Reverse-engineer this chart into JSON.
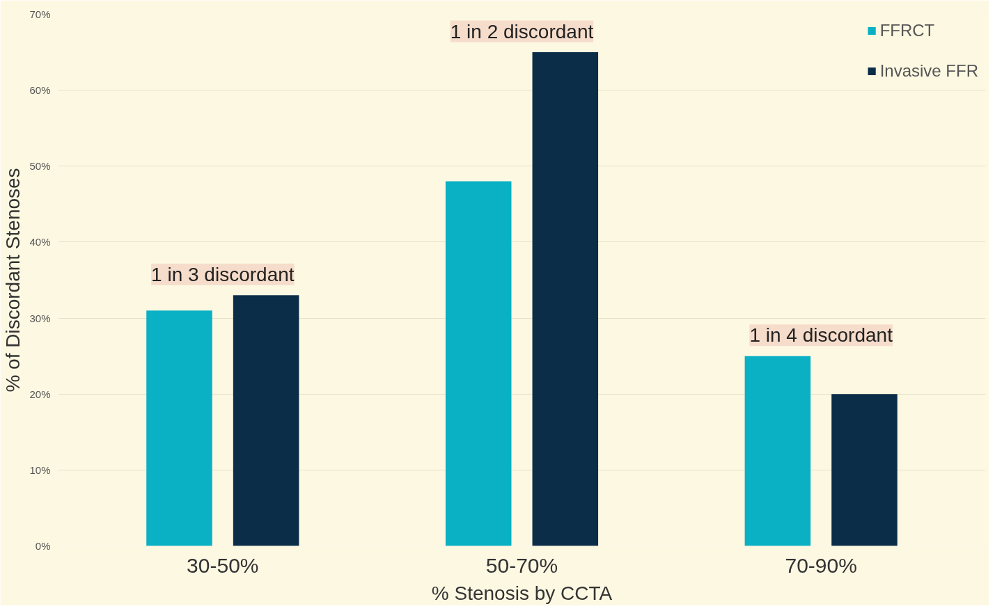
{
  "chart_data": {
    "type": "bar",
    "xlabel": "% Stenosis by CCTA",
    "ylabel": "% of Discordant Stenoses",
    "categories": [
      "30-50%",
      "50-70%",
      "70-90%"
    ],
    "series": [
      {
        "name": "FFRCT",
        "color": "#0ab0c4",
        "values": [
          31,
          48,
          25
        ]
      },
      {
        "name": "Invasive FFR",
        "color": "#0b2d47",
        "values": [
          33,
          65,
          20
        ]
      }
    ],
    "ylim": [
      0,
      70
    ],
    "yticks": [
      {
        "value": 0,
        "label": "0%"
      },
      {
        "value": 10,
        "label": "10%"
      },
      {
        "value": 20,
        "label": "20%"
      },
      {
        "value": 30,
        "label": "30%"
      },
      {
        "value": 40,
        "label": "40%"
      },
      {
        "value": 50,
        "label": "50%"
      },
      {
        "value": 60,
        "label": "60%"
      },
      {
        "value": 70,
        "label": "70%"
      }
    ],
    "grid": "y",
    "legend": "top right",
    "annotations": [
      "1 in 3 discordant",
      "1 in 2 discordant",
      "1 in 4 discordant"
    ]
  }
}
